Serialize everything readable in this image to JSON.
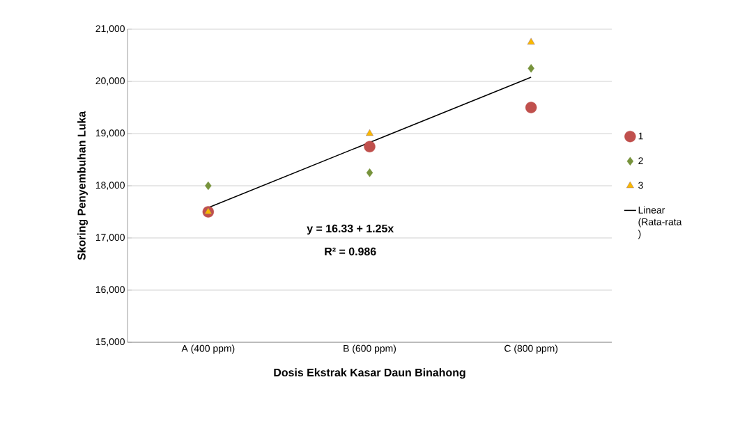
{
  "chart_data": {
    "type": "scatter",
    "xlabel": "Dosis Ekstrak Kasar Daun Binahong",
    "ylabel": "Skoring Penyembuhan Luka",
    "categories": [
      "A (400 ppm)",
      "B (600 ppm)",
      "C (800 ppm)"
    ],
    "series": [
      {
        "name": "1",
        "color": "#c0504d",
        "marker": "circle",
        "values": [
          17500,
          18750,
          19500
        ]
      },
      {
        "name": "2",
        "color": "#77933c",
        "marker": "diamond",
        "values": [
          18000,
          18250,
          20250
        ]
      },
      {
        "name": "3",
        "color": "#f9b800",
        "marker": "triangle",
        "values": [
          17500,
          19000,
          20750
        ]
      },
      {
        "name": "Linear (Rata-rata )",
        "type": "line",
        "color": "#000000",
        "values": [
          17580,
          18830,
          20080
        ]
      }
    ],
    "ylim": [
      15000,
      21000
    ],
    "yticks": [
      {
        "value": 15000,
        "label": "15,000"
      },
      {
        "value": 16000,
        "label": "16,000"
      },
      {
        "value": 17000,
        "label": "17,000"
      },
      {
        "value": 18000,
        "label": "18,000"
      },
      {
        "value": 19000,
        "label": "19,000"
      },
      {
        "value": 20000,
        "label": "20,000"
      },
      {
        "value": 21000,
        "label": "21,000"
      }
    ],
    "grid": "y",
    "legend": "right",
    "annotations": [
      "y =  16.33 + 1.25x",
      "R² = 0.986"
    ]
  }
}
